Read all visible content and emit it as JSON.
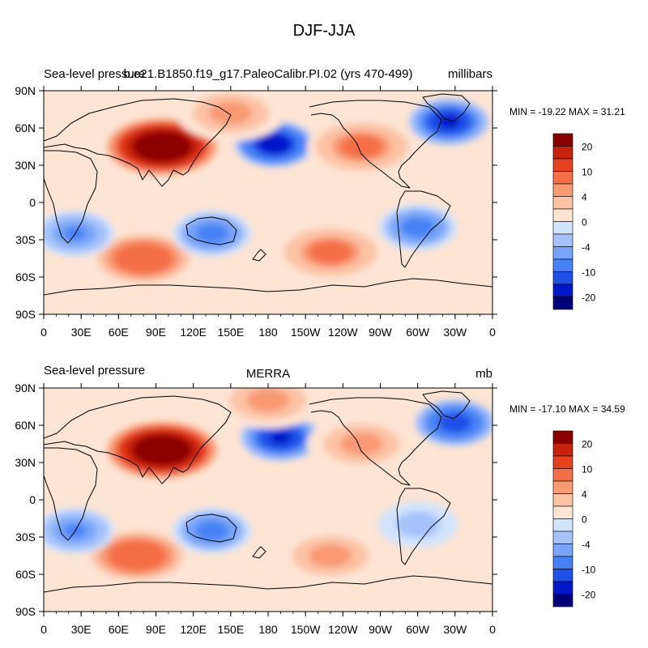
{
  "figure_title": "DJF-JJA",
  "chart_data": [
    {
      "type": "heatmap",
      "variable_label": "Sea-level pressure",
      "case_label": "b.e21.B1850.f19_g17.PaleoCalibr.PI.02 (yrs 470-499)",
      "units_label": "millibars",
      "stats_label": "MIN = -19.22 MAX =  31.21",
      "min": -19.22,
      "max": 31.21,
      "x_ticks": [
        "0",
        "30E",
        "60E",
        "90E",
        "120E",
        "150E",
        "180",
        "150W",
        "120W",
        "90W",
        "60W",
        "30W",
        "0"
      ],
      "y_ticks": [
        "90N",
        "60N",
        "30N",
        "0",
        "30S",
        "60S",
        "90S"
      ],
      "x_range_deg_east": [
        0,
        360
      ],
      "y_range_deg_north": [
        -90,
        90
      ],
      "contour_levels": [
        -25,
        -20,
        -15,
        -10,
        -6,
        -4,
        -2,
        0,
        2,
        4,
        6,
        10,
        15,
        20,
        25
      ],
      "colorbar_labels": [
        "20",
        "10",
        "4",
        "0",
        "-4",
        "-10",
        "-20"
      ],
      "colorbar_label_values": [
        20,
        10,
        4,
        0,
        -4,
        -10,
        -20
      ],
      "features": [
        {
          "region": "Central Asia high",
          "lon": 95,
          "lat": 45,
          "value": 31
        },
        {
          "region": "North Pacific (Aleutian) low",
          "lon": 185,
          "lat": 47,
          "value": -19
        },
        {
          "region": "Iceland low",
          "lon": 325,
          "lat": 65,
          "value": -17
        },
        {
          "region": "North America",
          "lon": 255,
          "lat": 45,
          "value": 8
        },
        {
          "region": "Siberia Arctic",
          "lon": 150,
          "lat": 72,
          "value": 6
        },
        {
          "region": "South Pacific",
          "lon": 230,
          "lat": -40,
          "value": 8
        },
        {
          "region": "South Indian Ocean",
          "lon": 80,
          "lat": -45,
          "value": 10
        },
        {
          "region": "Australia",
          "lon": 135,
          "lat": -25,
          "value": -8
        },
        {
          "region": "South America",
          "lon": 300,
          "lat": -20,
          "value": -8
        },
        {
          "region": "Southern Africa",
          "lon": 25,
          "lat": -25,
          "value": -6
        }
      ]
    },
    {
      "type": "heatmap",
      "variable_label": "Sea-level pressure",
      "case_label": "MERRA",
      "units_label": "mb",
      "stats_label": "MIN = -17.10 MAX =  34.59",
      "min": -17.1,
      "max": 34.59,
      "x_ticks": [
        "0",
        "30E",
        "60E",
        "90E",
        "120E",
        "150E",
        "180",
        "150W",
        "120W",
        "90W",
        "60W",
        "30W",
        "0"
      ],
      "y_ticks": [
        "90N",
        "60N",
        "30N",
        "0",
        "30S",
        "60S",
        "90S"
      ],
      "x_range_deg_east": [
        0,
        360
      ],
      "y_range_deg_north": [
        -90,
        90
      ],
      "contour_levels": [
        -25,
        -20,
        -15,
        -10,
        -6,
        -4,
        -2,
        0,
        2,
        4,
        6,
        10,
        15,
        20,
        25
      ],
      "colorbar_labels": [
        "20",
        "10",
        "4",
        "0",
        "-4",
        "-10",
        "-20"
      ],
      "colorbar_label_values": [
        20,
        10,
        4,
        0,
        -4,
        -10,
        -20
      ],
      "features": [
        {
          "region": "Central Asia high",
          "lon": 95,
          "lat": 40,
          "value": 34
        },
        {
          "region": "North Pacific (Aleutian) low",
          "lon": 190,
          "lat": 50,
          "value": -17
        },
        {
          "region": "Iceland low",
          "lon": 330,
          "lat": 62,
          "value": -14
        },
        {
          "region": "North America",
          "lon": 255,
          "lat": 45,
          "value": 6
        },
        {
          "region": "Arctic",
          "lon": 180,
          "lat": 80,
          "value": 6
        },
        {
          "region": "South Pacific",
          "lon": 230,
          "lat": -45,
          "value": 6
        },
        {
          "region": "South Indian Ocean",
          "lon": 75,
          "lat": -45,
          "value": 10
        },
        {
          "region": "Australia",
          "lon": 135,
          "lat": -25,
          "value": -8
        },
        {
          "region": "South America",
          "lon": 300,
          "lat": -20,
          "value": -3
        },
        {
          "region": "Southern Africa",
          "lon": 25,
          "lat": -25,
          "value": -6
        }
      ]
    }
  ],
  "colors": {
    "palette": [
      "#00007a",
      "#0018c8",
      "#1e50e8",
      "#4682f5",
      "#78a5f8",
      "#a5c3fa",
      "#d2e4fc",
      "#fde4d3",
      "#fcc3a5",
      "#f89a73",
      "#f46e47",
      "#e6411e",
      "#c8230a",
      "#8c0000"
    ],
    "coastline": "#000000",
    "frame": "#000000"
  }
}
